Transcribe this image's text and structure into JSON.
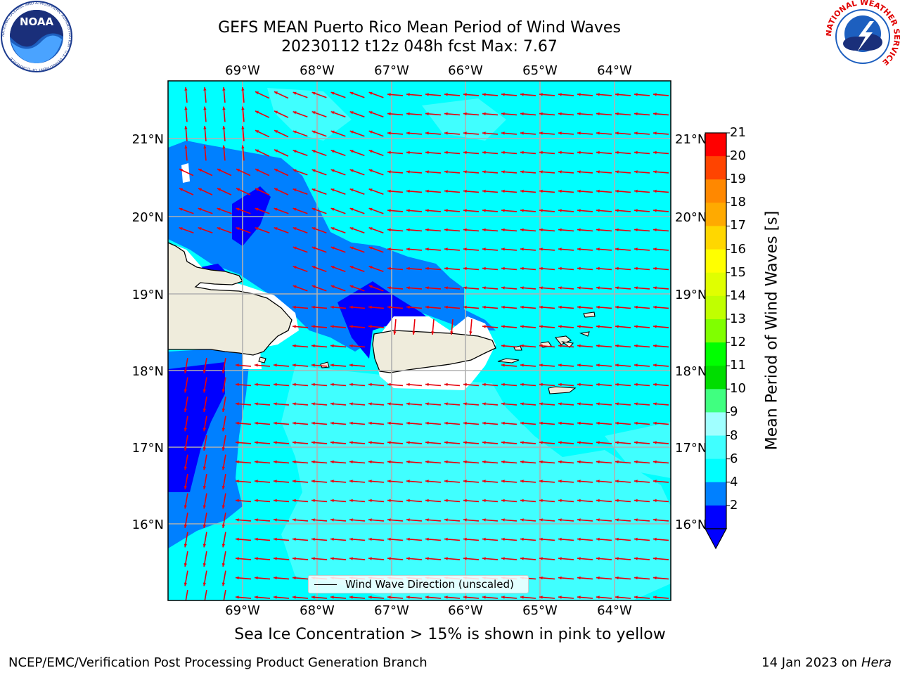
{
  "header": {
    "title_line1": "GEFS MEAN Puerto Rico Mean Period of Wind Waves",
    "title_line2": "20230112 t12z 048h fcst   Max: 7.67"
  },
  "logos": {
    "noaa_text": "NOAA",
    "noaa_ring_text": "NATIONAL OCEANIC AND ATMOSPHERIC ADMINISTRATION · U.S. DEPARTMENT OF COMMERCE",
    "nws_ring_text": "NATIONAL WEATHER SERVICE"
  },
  "map": {
    "lon_labels": [
      "69°W",
      "68°W",
      "67°W",
      "66°W",
      "65°W",
      "64°W"
    ],
    "lat_labels": [
      "21°N",
      "20°N",
      "19°N",
      "18°N",
      "17°N",
      "16°N"
    ],
    "legend_label": "Wind Wave Direction (unscaled)",
    "land_color": "#efecdc",
    "arrow_color": "#e8000b",
    "grid_color": "#b0b0b0"
  },
  "colorbar": {
    "title": "Mean Period of Wind Waves [s]",
    "ticks": [
      "2",
      "4",
      "6",
      "8",
      "9",
      "10",
      "11",
      "12",
      "13",
      "14",
      "15",
      "16",
      "17",
      "18",
      "19",
      "20",
      "21"
    ],
    "colors": [
      "#0000ff",
      "#0080ff",
      "#00ffff",
      "#40ffff",
      "#a0ffff",
      "#40ff80",
      "#00dd00",
      "#00ff00",
      "#80ff00",
      "#c0ff00",
      "#e0ff00",
      "#ffff00",
      "#ffd700",
      "#ffaa00",
      "#ff8800",
      "#ff4400",
      "#ff0000"
    ],
    "below_color": "#0000ff"
  },
  "caption": "Sea Ice Concentration > 15% is shown in pink to yellow",
  "footer": {
    "left": "NCEP/EMC/Verification Post Processing Product Generation Branch",
    "right_prefix": "14 Jan 2023 on ",
    "right_machine": "Hera"
  }
}
